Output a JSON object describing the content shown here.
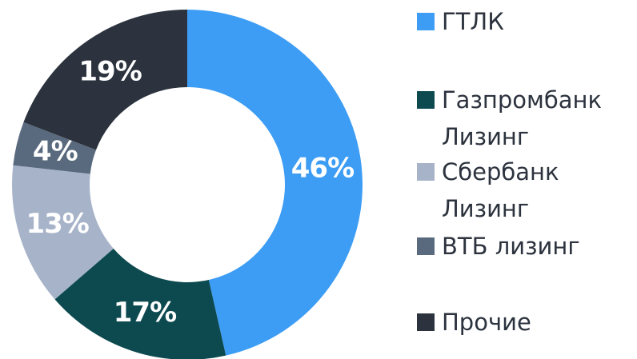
{
  "chart_data": {
    "type": "donut",
    "categories": [
      "ГТЛК",
      "Газпромбанк Лизинг",
      "Сбербанк Лизинг",
      "ВТБ лизинг",
      "Прочие"
    ],
    "values": [
      46,
      17,
      13,
      4,
      19
    ],
    "value_labels": [
      "46%",
      "17%",
      "13%",
      "4%",
      "19%"
    ],
    "colors": [
      "#3d9df5",
      "#0d4a50",
      "#a7b3c9",
      "#5a6a7e",
      "#2c333e"
    ]
  }
}
